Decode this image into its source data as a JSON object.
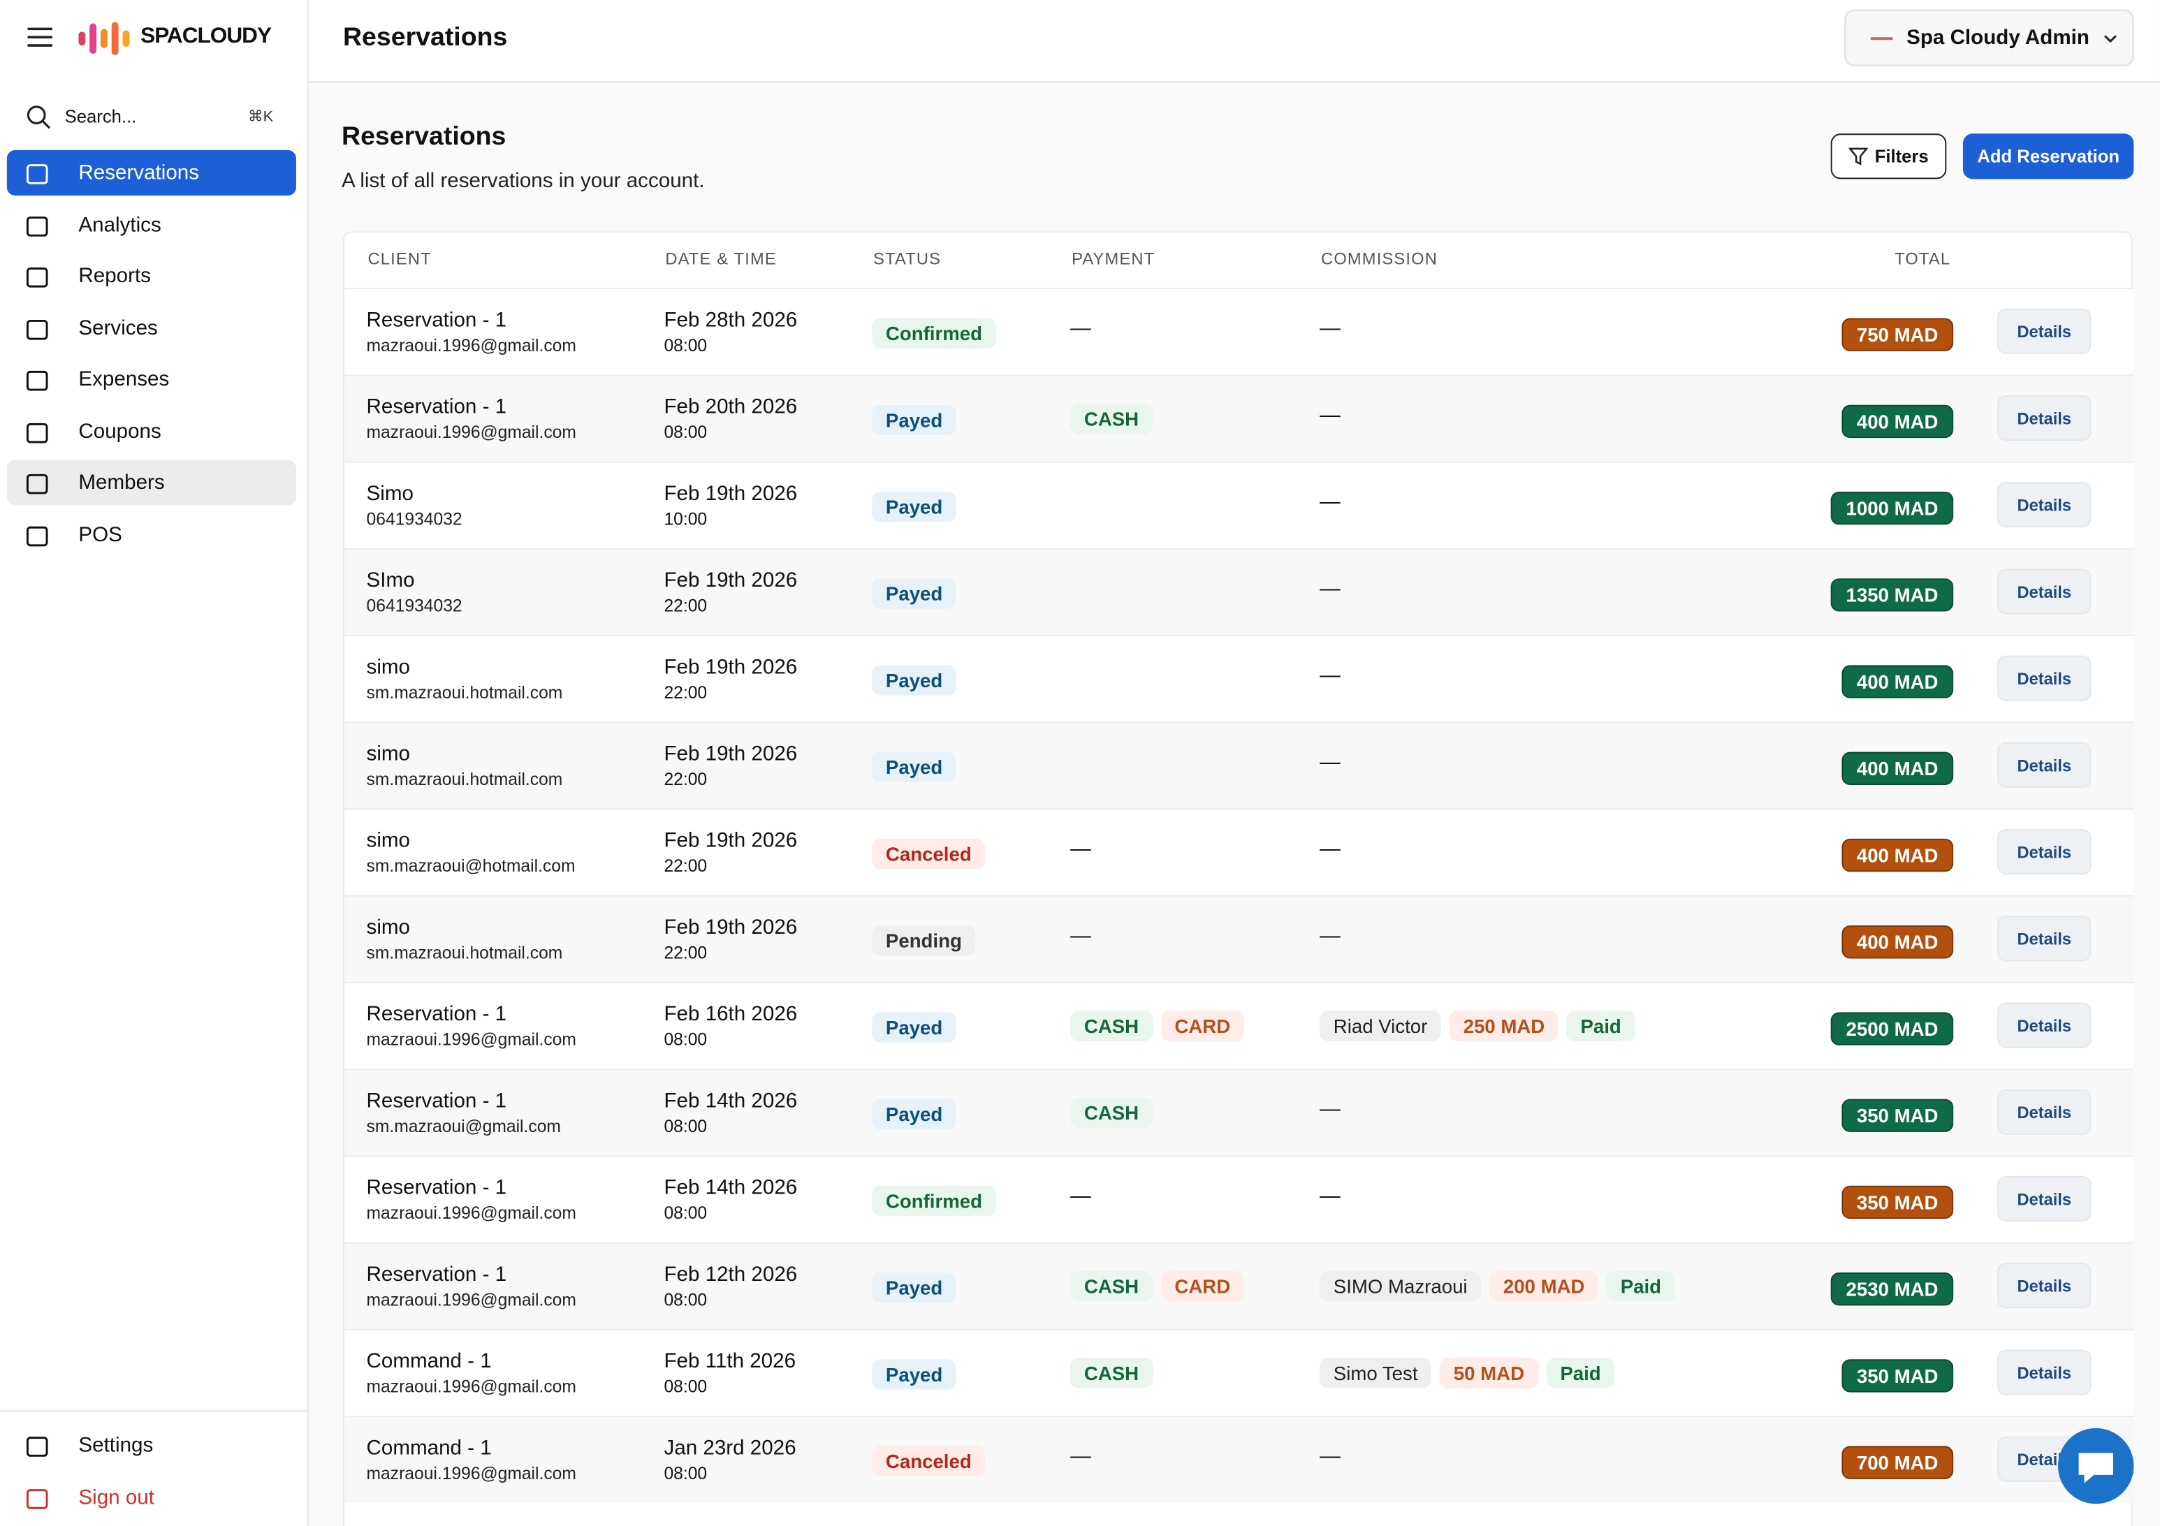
{
  "header": {
    "logo": "SPACLOUDY",
    "title": "Reservations",
    "user": "Spa Cloudy Admin"
  },
  "sidebar": {
    "search": "Search...",
    "shortcut": "⌘K",
    "nav": [
      "Reservations",
      "Analytics",
      "Reports",
      "Services",
      "Expenses",
      "Coupons",
      "Members",
      "POS"
    ],
    "bottom": [
      "Settings",
      "Sign out"
    ]
  },
  "page": {
    "title": "Reservations",
    "subtitle": "A list of all reservations in your account.",
    "filters": "Filters",
    "add": "Add Reservation"
  },
  "table": {
    "columns": [
      "CLIENT",
      "DATE & TIME",
      "STATUS",
      "PAYMENT",
      "COMMISSION",
      "TOTAL"
    ],
    "action": "Details",
    "empty": "—",
    "rows": [
      {
        "client": "Reservation - 1",
        "contact": "mazraoui.1996@gmail.com",
        "date": "Feb 28th 2026",
        "time": "08:00",
        "status": "Confirmed",
        "payment": "—",
        "commission": "—",
        "total": "750 MAD"
      },
      {
        "client": "Reservation - 1",
        "contact": "mazraoui.1996@gmail.com",
        "date": "Feb 20th 2026",
        "time": "08:00",
        "status": "Payed",
        "payment": [
          "CASH"
        ],
        "commission": "—",
        "total": "400 MAD"
      },
      {
        "client": "Simo",
        "contact": "0641934032",
        "date": "Feb 19th 2026",
        "time": "10:00",
        "status": "Payed",
        "payment": [],
        "commission": "—",
        "total": "1000 MAD"
      },
      {
        "client": "SImo",
        "contact": "0641934032",
        "date": "Feb 19th 2026",
        "time": "22:00",
        "status": "Payed",
        "payment": [],
        "commission": "—",
        "total": "1350 MAD"
      },
      {
        "client": "simo",
        "contact": "sm.mazraoui.hotmail.com",
        "date": "Feb 19th 2026",
        "time": "22:00",
        "status": "Payed",
        "payment": [],
        "commission": "—",
        "total": "400 MAD"
      },
      {
        "client": "simo",
        "contact": "sm.mazraoui.hotmail.com",
        "date": "Feb 19th 2026",
        "time": "22:00",
        "status": "Payed",
        "payment": [],
        "commission": "—",
        "total": "400 MAD"
      },
      {
        "client": "simo",
        "contact": "sm.mazraoui@hotmail.com",
        "date": "Feb 19th 2026",
        "time": "22:00",
        "status": "Canceled",
        "payment": "—",
        "commission": "—",
        "total": "400 MAD"
      },
      {
        "client": "simo",
        "contact": "sm.mazraoui.hotmail.com",
        "date": "Feb 19th 2026",
        "time": "22:00",
        "status": "Pending",
        "payment": "—",
        "commission": "—",
        "total": "400 MAD"
      },
      {
        "client": "Reservation - 1",
        "contact": "mazraoui.1996@gmail.com",
        "date": "Feb 16th 2026",
        "time": "08:00",
        "status": "Payed",
        "payment": [
          "CASH",
          "CARD"
        ],
        "commission": {
          "name": "Riad Victor",
          "amount": "250 MAD",
          "state": "Paid"
        },
        "total": "2500 MAD"
      },
      {
        "client": "Reservation - 1",
        "contact": "sm.mazraoui@gmail.com",
        "date": "Feb 14th 2026",
        "time": "08:00",
        "status": "Payed",
        "payment": [
          "CASH"
        ],
        "commission": "—",
        "total": "350 MAD"
      },
      {
        "client": "Reservation - 1",
        "contact": "mazraoui.1996@gmail.com",
        "date": "Feb 14th 2026",
        "time": "08:00",
        "status": "Confirmed",
        "payment": "—",
        "commission": "—",
        "total": "350 MAD"
      },
      {
        "client": "Reservation - 1",
        "contact": "mazraoui.1996@gmail.com",
        "date": "Feb 12th 2026",
        "time": "08:00",
        "status": "Payed",
        "payment": [
          "CASH",
          "CARD"
        ],
        "commission": {
          "name": "SIMO Mazraoui",
          "amount": "200 MAD",
          "state": "Paid"
        },
        "total": "2530 MAD"
      },
      {
        "client": "Command - 1",
        "contact": "mazraoui.1996@gmail.com",
        "date": "Feb 11th 2026",
        "time": "08:00",
        "status": "Payed",
        "payment": [
          "CASH"
        ],
        "commission": {
          "name": "Simo Test",
          "amount": "50 MAD",
          "state": "Paid"
        },
        "total": "350 MAD"
      },
      {
        "client": "Command - 1",
        "contact": "mazraoui.1996@gmail.com",
        "date": "Jan 23rd 2026",
        "time": "08:00",
        "status": "Canceled",
        "payment": "—",
        "commission": "—",
        "total": "700 MAD"
      }
    ]
  }
}
